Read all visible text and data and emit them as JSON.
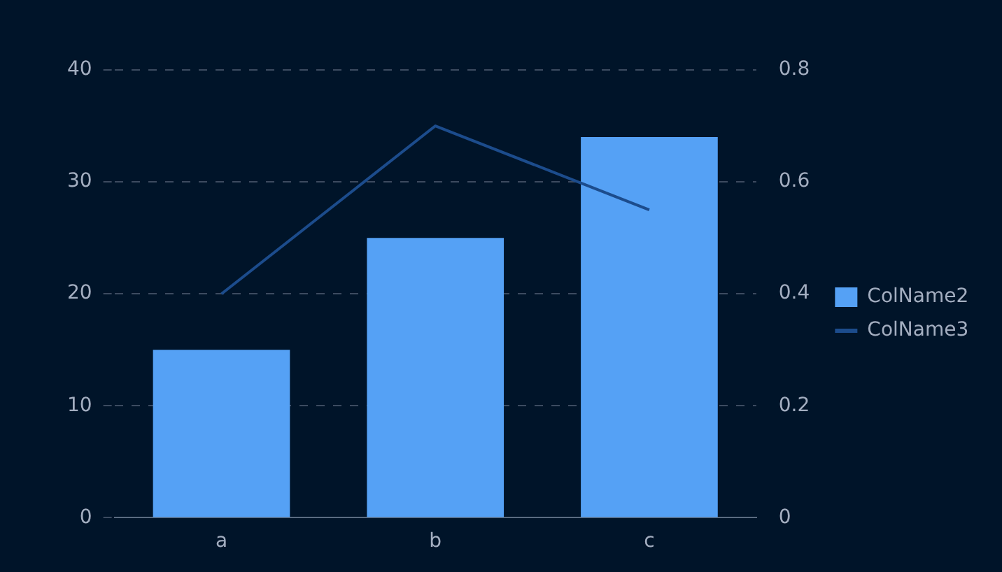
{
  "chart_data": {
    "type": "bar",
    "categories": [
      "a",
      "b",
      "c"
    ],
    "series": [
      {
        "name": "ColName2",
        "color": "#55a1f5",
        "values": [
          15,
          25,
          34
        ]
      },
      {
        "name": "ColName3",
        "type": "line",
        "axis": "y2",
        "color": "#1c4c8c",
        "values": [
          0.4,
          0.7,
          0.55
        ]
      }
    ],
    "ylim": [
      0,
      40
    ],
    "yticks": [
      0,
      10,
      20,
      30,
      40
    ],
    "y2lim": [
      0,
      0.8
    ],
    "y2ticks": [
      0,
      0.2,
      0.4,
      0.6,
      0.8
    ],
    "grid": "y",
    "legend": "right",
    "marker": "none",
    "line_style": "solid"
  }
}
